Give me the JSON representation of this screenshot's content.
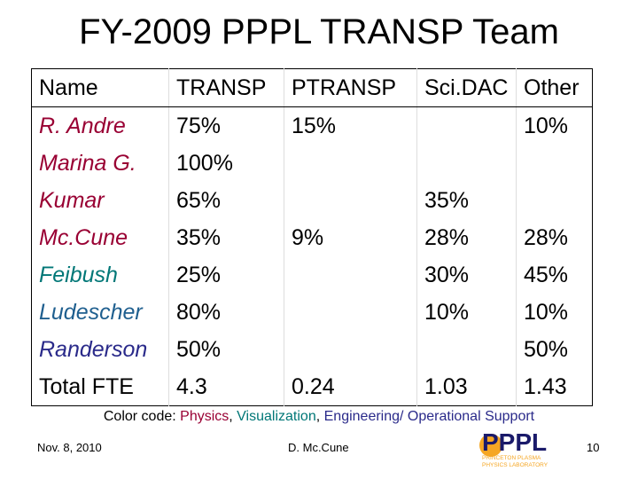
{
  "header": {
    "title": "FY-2009 PPPL TRANSP Team"
  },
  "table": {
    "columns": [
      "Name",
      "TRANSP",
      "PTRANSP",
      "Sci.DAC",
      "Other"
    ],
    "rows": [
      [
        "R. Andre",
        "75%",
        "15%",
        null,
        "10%"
      ],
      [
        "Marina G.",
        "100%",
        null,
        null,
        null
      ],
      [
        "Kumar",
        "65%",
        null,
        "35%",
        null
      ],
      [
        "Mc.Cune",
        "35%",
        "9%",
        "28%",
        "28%"
      ],
      [
        "Feibush",
        "25%",
        null,
        "30%",
        "45%"
      ],
      [
        "Ludescher",
        "80%",
        null,
        "10%",
        "10%"
      ],
      [
        "Randerson",
        "50%",
        null,
        null,
        "50%"
      ],
      [
        "Total FTE",
        "4.3",
        "0.24",
        "1.03",
        "1.43"
      ]
    ]
  },
  "color_code": {
    "label": "Color code:",
    "separator": ",",
    "items": [
      "Physics",
      "Visualization",
      "Engineering/ Operational Support"
    ]
  },
  "footer": {
    "date": "Nov. 8, 2010",
    "author": "D. Mc.Cune",
    "page": "10"
  },
  "logo": {
    "name": "PPPL",
    "line1": "PRINCETON PLASMA",
    "line2": "PHYSICS LABORATORY"
  }
}
